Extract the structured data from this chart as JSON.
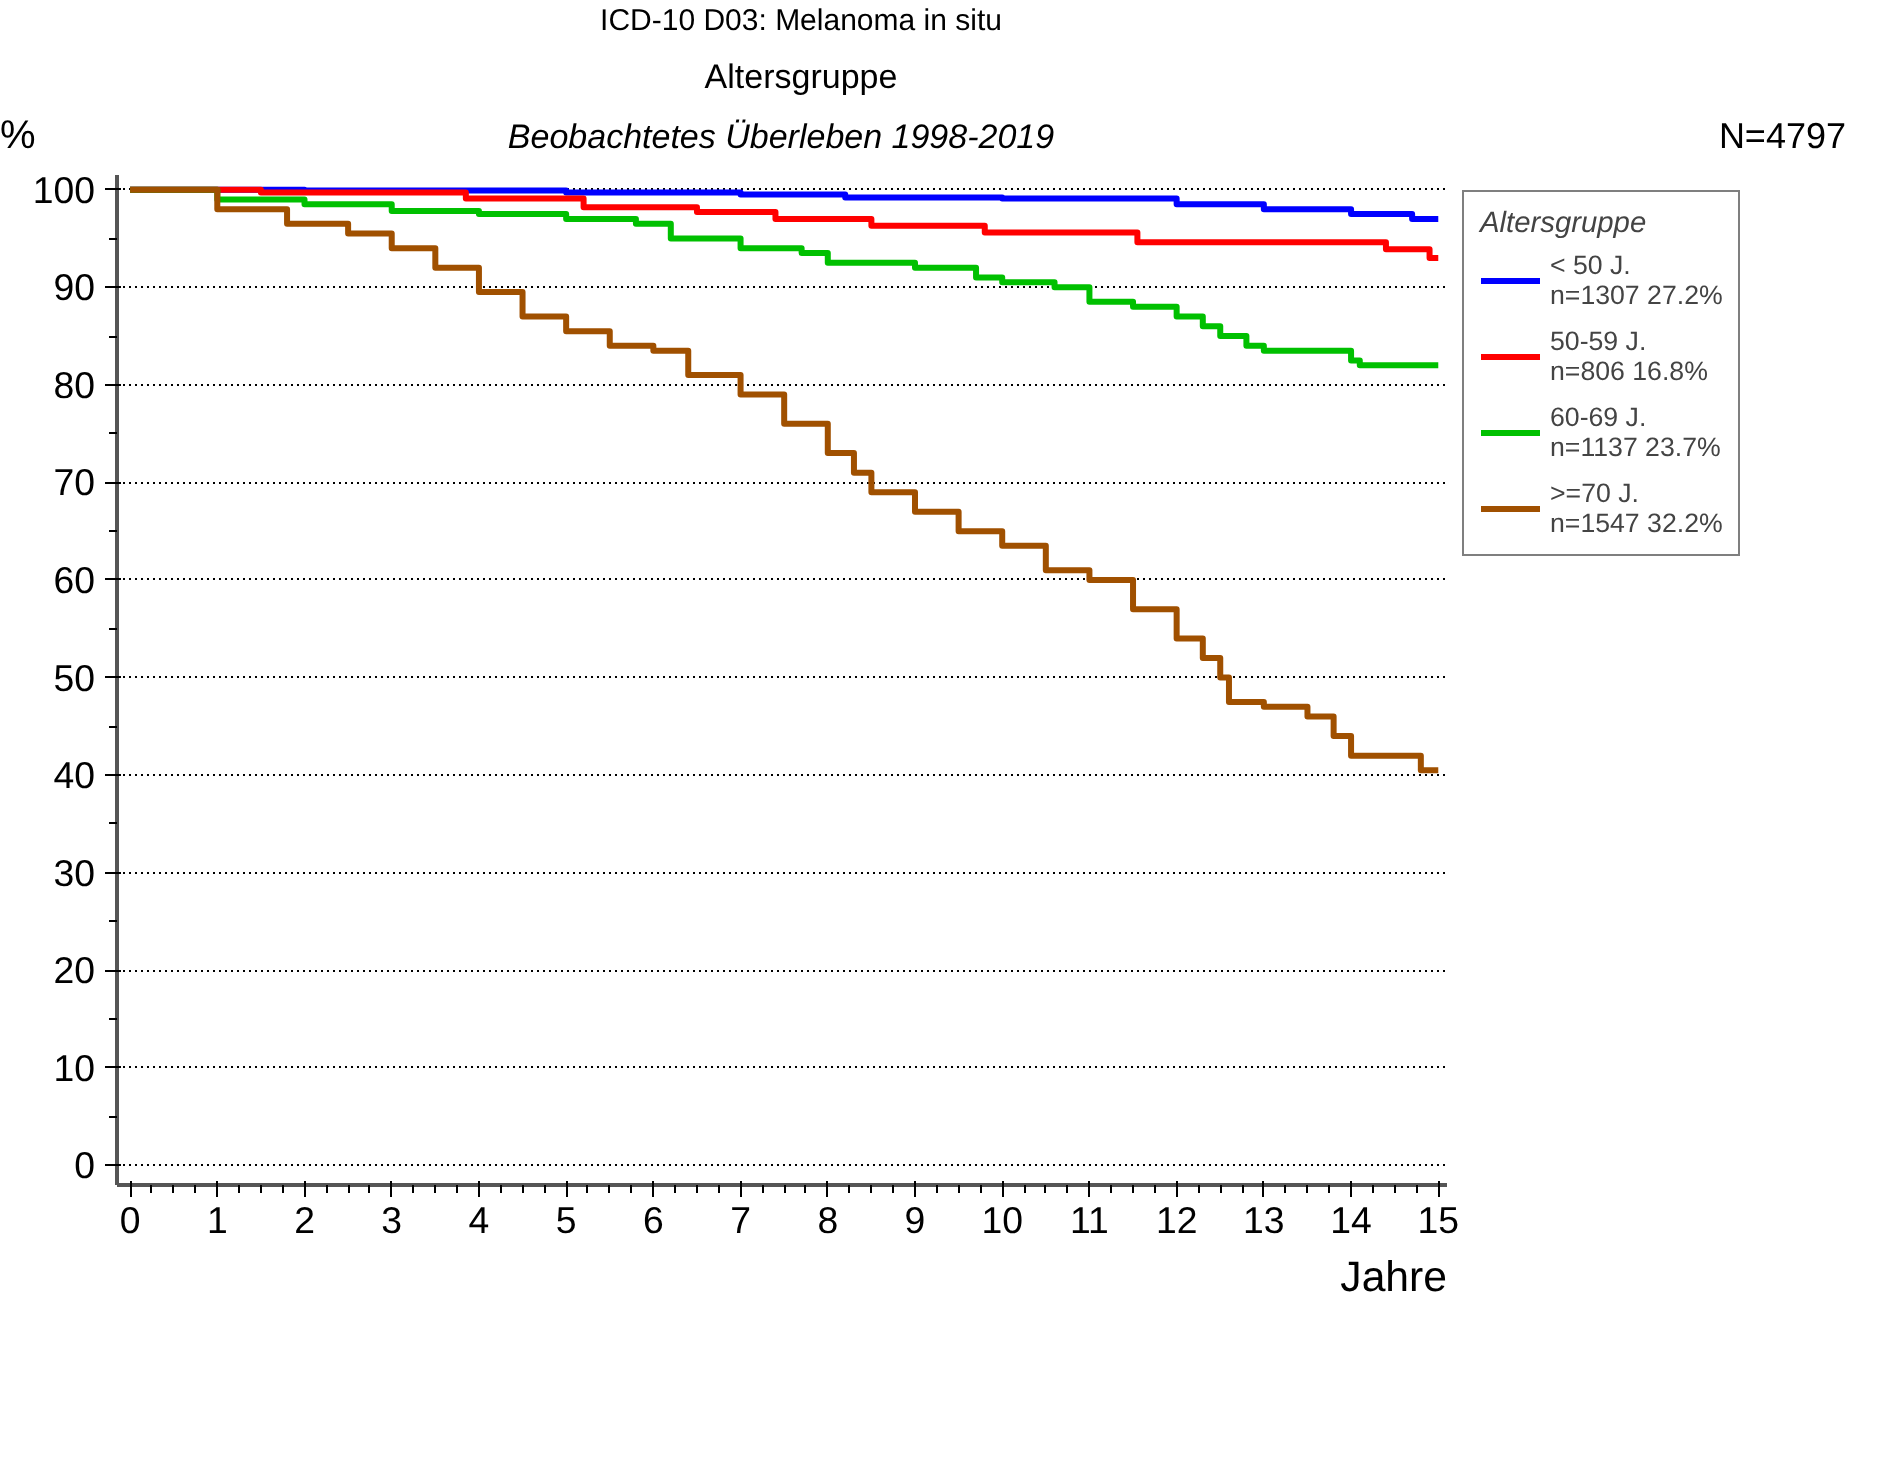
{
  "chart_data": {
    "type": "step",
    "title": "ICD-10 D03: Melanoma in situ",
    "subtitle": "Altersgruppe",
    "annotations": [
      "Beobachtetes Überleben 1998-2019",
      "N=4797"
    ],
    "xlabel": "Jahre",
    "ylabel": "%",
    "legend_title": "Altersgruppe",
    "legend": "right",
    "grid": "y",
    "xlim": [
      -0.15,
      15.1
    ],
    "ylim": [
      -2,
      101.5
    ],
    "xticks": [
      0,
      1,
      2,
      3,
      4,
      5,
      6,
      7,
      8,
      9,
      10,
      11,
      12,
      13,
      14,
      15
    ],
    "yticks": [
      0,
      10,
      20,
      30,
      40,
      50,
      60,
      70,
      80,
      90,
      100
    ],
    "series": [
      {
        "name": "< 50 J.\nn=1307 27.2%",
        "color": "#0000ff",
        "x": [
          0,
          2,
          5,
          7,
          8.2,
          10,
          12,
          13,
          14,
          14.7,
          15
        ],
        "values": [
          100,
          99.9,
          99.7,
          99.5,
          99.2,
          99.1,
          98.5,
          98,
          97.5,
          97,
          97
        ]
      },
      {
        "name": "50-59 J.\nn=806 16.8%",
        "color": "#ff0000",
        "x": [
          0,
          1.5,
          3.85,
          5.2,
          6.5,
          7.4,
          8.5,
          9.8,
          11.55,
          14.4,
          14.9,
          15
        ],
        "values": [
          100,
          99.7,
          99.1,
          98.2,
          97.7,
          97,
          96.3,
          95.6,
          94.6,
          93.9,
          93,
          93
        ]
      },
      {
        "name": "60-69 J.\nn=1137 23.7%",
        "color": "#00c000",
        "x": [
          0,
          1,
          2,
          3,
          4,
          5,
          5.8,
          6.2,
          7,
          7.7,
          8,
          9,
          9.7,
          10,
          10.6,
          11,
          11.5,
          12,
          12.3,
          12.5,
          12.8,
          13,
          14,
          14.1,
          15
        ],
        "values": [
          100,
          99,
          98.5,
          97.8,
          97.5,
          97,
          96.5,
          95,
          94,
          93.5,
          92.5,
          92,
          91,
          90.5,
          90,
          88.5,
          88,
          87,
          86,
          85,
          84,
          83.5,
          82.5,
          82,
          82
        ]
      },
      {
        "name": ">=70 J.\nn=1547 32.2%",
        "color": "#a05000",
        "x": [
          0,
          1,
          1.8,
          2.5,
          3,
          3.5,
          4,
          4.5,
          5,
          5.5,
          6,
          6.4,
          7,
          7.5,
          8,
          8.3,
          8.5,
          9,
          9.5,
          10,
          10.5,
          11,
          11.5,
          12,
          12.3,
          12.5,
          12.6,
          13,
          13.5,
          13.8,
          14,
          14.8,
          15
        ],
        "values": [
          100,
          98,
          96.5,
          95.5,
          94,
          92,
          89.5,
          87,
          85.5,
          84,
          83.5,
          81,
          79,
          76,
          73,
          71,
          69,
          67,
          65,
          63.5,
          61,
          60,
          57,
          54,
          52,
          50,
          47.5,
          47,
          46,
          44,
          42,
          40.5,
          40.5
        ]
      }
    ]
  }
}
